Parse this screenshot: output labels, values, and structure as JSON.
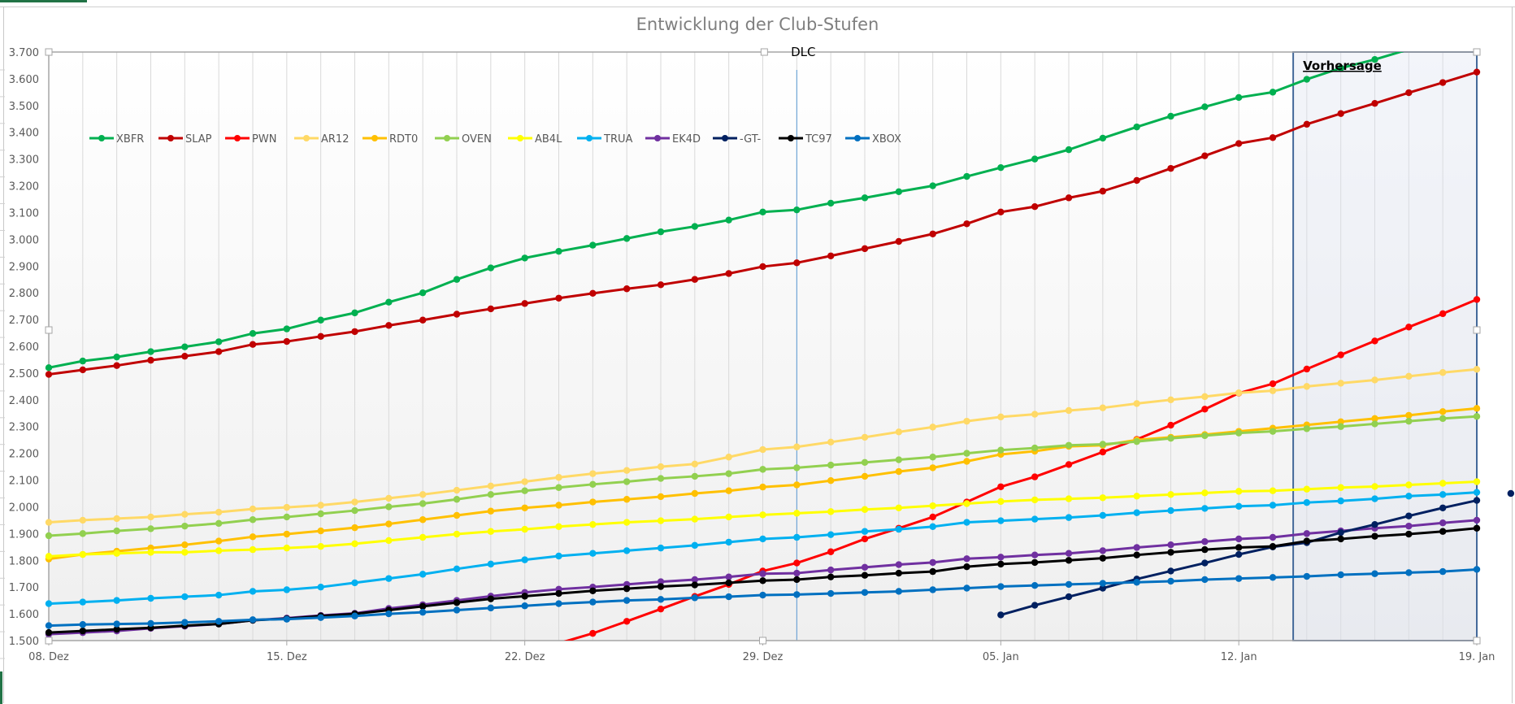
{
  "window": {
    "app": "Excel chart"
  },
  "chart_data": {
    "type": "line",
    "title": "Entwicklung der Club-Stufen",
    "xlabel": "",
    "ylabel": "",
    "ylim": [
      1500,
      3700
    ],
    "y_ticks": [
      "1.500",
      "1.600",
      "1.700",
      "1.800",
      "1.900",
      "2.000",
      "2.100",
      "2.200",
      "2.300",
      "2.400",
      "2.500",
      "2.600",
      "2.700",
      "2.800",
      "2.900",
      "3.000",
      "3.100",
      "3.200",
      "3.300",
      "3.400",
      "3.500",
      "3.600",
      "3.700"
    ],
    "y_tick_values": [
      1500,
      1600,
      1700,
      1800,
      1900,
      2000,
      2100,
      2200,
      2300,
      2400,
      2500,
      2600,
      2700,
      2800,
      2900,
      3000,
      3100,
      3200,
      3300,
      3400,
      3500,
      3600,
      3700
    ],
    "x_start_label": "08. Dez",
    "x_days": 42,
    "x_tick_labels": [
      "08. Dez",
      "15. Dez",
      "22. Dez",
      "29. Dez",
      "05. Jan",
      "12. Jan",
      "19. Jan"
    ],
    "x_tick_days": [
      0,
      7,
      14,
      21,
      28,
      35,
      42
    ],
    "grid": "vertical daily",
    "legend_position": "top-left inside",
    "annotations": [
      {
        "label": "DLC",
        "type": "vertical-line",
        "day": 22
      },
      {
        "label": "Vorhersage",
        "type": "shaded-region",
        "from_day": 36.6,
        "to_day": 42
      }
    ],
    "series": [
      {
        "name": "XBFR",
        "color": "#00b050",
        "start_day": 0,
        "values": [
          2520,
          2545,
          2560,
          2580,
          2598,
          2617,
          2648,
          2665,
          2698,
          2725,
          2765,
          2800,
          2850,
          2893,
          2930,
          2955,
          2978,
          3003,
          3028,
          3048,
          3072,
          3102,
          3110,
          3135,
          3155,
          3178,
          3200,
          3235,
          3268,
          3300,
          3335,
          3378,
          3420,
          3460,
          3495,
          3530,
          3550,
          3598,
          3640,
          3672,
          3710,
          3750,
          3790
        ]
      },
      {
        "name": "SLAP",
        "color": "#c00000",
        "start_day": 0,
        "values": [
          2495,
          2512,
          2528,
          2548,
          2563,
          2580,
          2607,
          2618,
          2637,
          2655,
          2678,
          2698,
          2720,
          2740,
          2760,
          2780,
          2798,
          2815,
          2830,
          2850,
          2872,
          2898,
          2912,
          2938,
          2965,
          2992,
          3020,
          3058,
          3102,
          3122,
          3155,
          3180,
          3220,
          3265,
          3312,
          3358,
          3380,
          3430,
          3470,
          3508,
          3548,
          3586,
          3625
        ]
      },
      {
        "name": "PWN",
        "color": "#ff0000",
        "start_day": 15,
        "values": [
          1490,
          1527,
          1572,
          1618,
          1665,
          1710,
          1760,
          1790,
          1832,
          1880,
          1920,
          1962,
          2018,
          2075,
          2112,
          2158,
          2205,
          2252,
          2305,
          2365,
          2425,
          2460,
          2515,
          2568,
          2620,
          2672,
          2722,
          2775
        ]
      },
      {
        "name": "AR12",
        "color": "#ffd966",
        "start_day": 0,
        "values": [
          1942,
          1950,
          1956,
          1962,
          1972,
          1980,
          1992,
          1998,
          2006,
          2018,
          2032,
          2046,
          2062,
          2078,
          2094,
          2110,
          2124,
          2136,
          2150,
          2160,
          2186,
          2214,
          2224,
          2242,
          2260,
          2280,
          2298,
          2320,
          2336,
          2346,
          2360,
          2370,
          2386,
          2400,
          2412,
          2426,
          2434,
          2450,
          2462,
          2474,
          2488,
          2502,
          2514
        ]
      },
      {
        "name": "RDT0",
        "color": "#ffc000",
        "start_day": 0,
        "values": [
          1805,
          1822,
          1834,
          1846,
          1858,
          1872,
          1888,
          1898,
          1910,
          1922,
          1936,
          1952,
          1968,
          1984,
          1996,
          2006,
          2018,
          2028,
          2038,
          2050,
          2060,
          2074,
          2082,
          2098,
          2114,
          2132,
          2146,
          2170,
          2196,
          2208,
          2226,
          2230,
          2250,
          2260,
          2270,
          2282,
          2294,
          2306,
          2318,
          2330,
          2342,
          2356,
          2368
        ]
      },
      {
        "name": "OVEN",
        "color": "#92d050",
        "start_day": 0,
        "values": [
          1892,
          1900,
          1910,
          1918,
          1928,
          1938,
          1952,
          1962,
          1974,
          1986,
          2000,
          2012,
          2028,
          2046,
          2060,
          2072,
          2084,
          2094,
          2106,
          2114,
          2124,
          2140,
          2146,
          2156,
          2166,
          2176,
          2186,
          2200,
          2212,
          2220,
          2230,
          2234,
          2244,
          2256,
          2266,
          2276,
          2282,
          2292,
          2300,
          2310,
          2320,
          2330,
          2338
        ]
      },
      {
        "name": "AB4L",
        "color": "#ffff00",
        "start_day": 0,
        "values": [
          1815,
          1822,
          1826,
          1830,
          1830,
          1836,
          1840,
          1846,
          1852,
          1862,
          1874,
          1886,
          1898,
          1908,
          1916,
          1926,
          1934,
          1942,
          1948,
          1954,
          1962,
          1970,
          1976,
          1982,
          1990,
          1996,
          2004,
          2012,
          2020,
          2026,
          2030,
          2034,
          2040,
          2046,
          2052,
          2058,
          2060,
          2066,
          2072,
          2076,
          2082,
          2088,
          2094
        ]
      },
      {
        "name": "TRUA",
        "color": "#00b0f0",
        "start_day": 0,
        "values": [
          1638,
          1644,
          1650,
          1658,
          1664,
          1670,
          1684,
          1690,
          1700,
          1716,
          1732,
          1748,
          1768,
          1786,
          1802,
          1816,
          1826,
          1836,
          1846,
          1856,
          1868,
          1880,
          1886,
          1896,
          1908,
          1916,
          1926,
          1942,
          1948,
          1954,
          1960,
          1968,
          1978,
          1986,
          1994,
          2002,
          2006,
          2016,
          2022,
          2030,
          2040,
          2046,
          2054
        ]
      },
      {
        "name": "EK4D",
        "color": "#7030a0",
        "start_day": 0,
        "values": [
          1524,
          1530,
          1536,
          1546,
          1554,
          1562,
          1576,
          1584,
          1594,
          1602,
          1620,
          1634,
          1650,
          1666,
          1680,
          1692,
          1700,
          1710,
          1720,
          1728,
          1738,
          1750,
          1752,
          1764,
          1774,
          1784,
          1792,
          1806,
          1812,
          1820,
          1826,
          1836,
          1848,
          1858,
          1870,
          1880,
          1886,
          1900,
          1910,
          1920,
          1928,
          1940,
          1950
        ]
      },
      {
        "name": "-GT-",
        "color": "#002060",
        "start_day": 28,
        "values": [
          1596,
          1632,
          1664,
          1696,
          1730,
          1760,
          1790,
          1822,
          1850,
          1866,
          1904,
          1934,
          1966,
          1996,
          2024,
          2050
        ]
      },
      {
        "name": "TC97",
        "color": "#000000",
        "start_day": 0,
        "values": [
          1530,
          1536,
          1542,
          1548,
          1556,
          1562,
          1576,
          1582,
          1592,
          1600,
          1614,
          1628,
          1642,
          1656,
          1666,
          1676,
          1686,
          1694,
          1702,
          1708,
          1716,
          1724,
          1728,
          1738,
          1744,
          1752,
          1758,
          1776,
          1786,
          1792,
          1800,
          1808,
          1820,
          1830,
          1840,
          1848,
          1852,
          1872,
          1880,
          1890,
          1898,
          1908,
          1920
        ]
      },
      {
        "name": "XBOX",
        "color": "#0070c0",
        "start_day": 0,
        "values": [
          1556,
          1560,
          1562,
          1564,
          1568,
          1572,
          1578,
          1580,
          1586,
          1592,
          1600,
          1606,
          1614,
          1622,
          1630,
          1638,
          1644,
          1650,
          1654,
          1660,
          1664,
          1670,
          1672,
          1676,
          1680,
          1684,
          1690,
          1696,
          1702,
          1706,
          1710,
          1714,
          1718,
          1722,
          1728,
          1732,
          1736,
          1740,
          1746,
          1750,
          1754,
          1758,
          1766
        ]
      }
    ]
  }
}
